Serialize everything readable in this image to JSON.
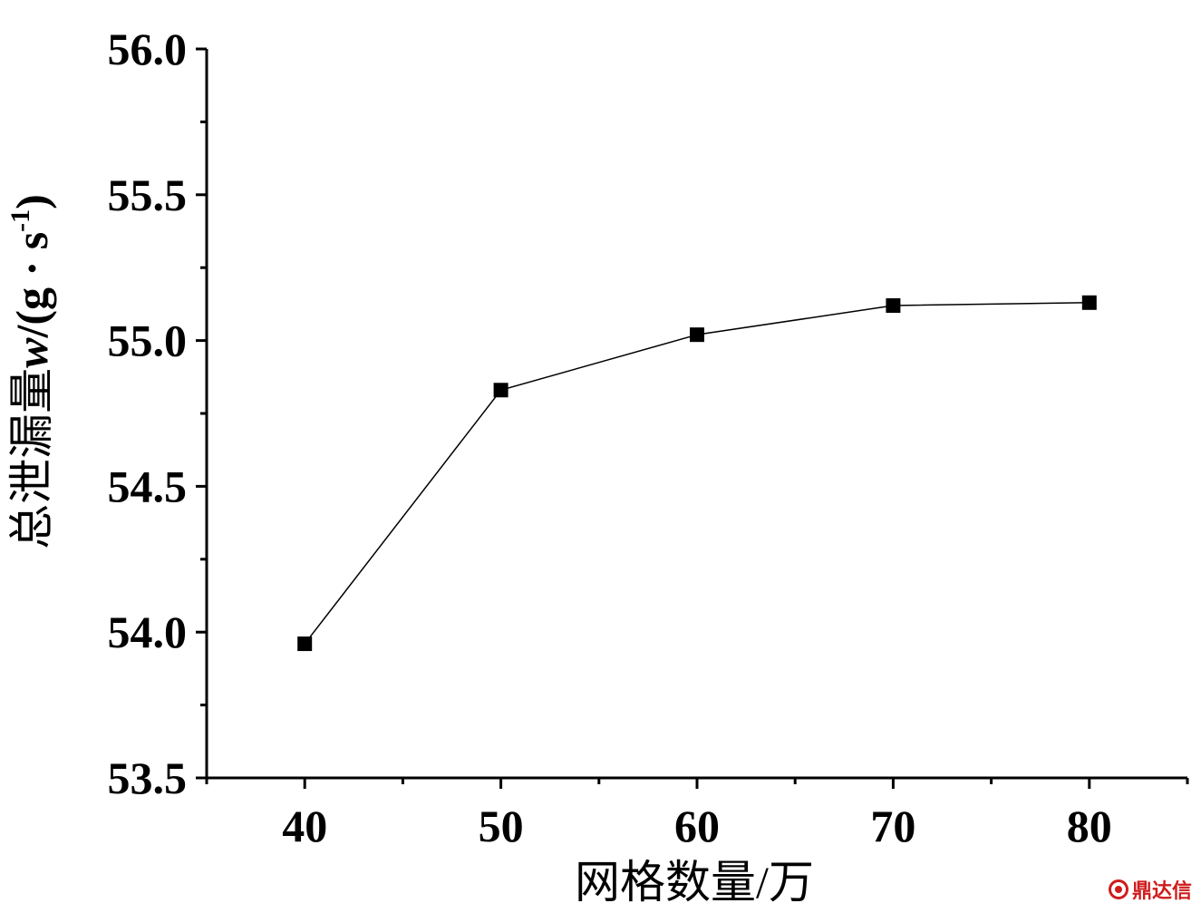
{
  "chart_data": {
    "type": "line",
    "x": [
      40,
      50,
      60,
      70,
      80
    ],
    "series": [
      {
        "values": [
          53.96,
          54.83,
          55.02,
          55.12,
          55.13
        ]
      }
    ],
    "xlabel": "网格数量/万",
    "ylabel_prefix": "总泄漏量",
    "ylabel_var": "w",
    "ylabel_unit": "/(g · s",
    "ylabel_sup": "-1",
    "ylabel_close": ")",
    "xticks": [
      "40",
      "50",
      "60",
      "70",
      "80"
    ],
    "yticks": [
      "53.5",
      "54.0",
      "54.5",
      "55.0",
      "55.5",
      "56.0"
    ],
    "xlim": [
      35,
      85
    ],
    "ylim": [
      53.5,
      56.0
    ],
    "marker": "square",
    "line_color": "#000000",
    "grid": false
  },
  "watermark": {
    "text": "鼎达信",
    "color": "#d01c1c"
  }
}
